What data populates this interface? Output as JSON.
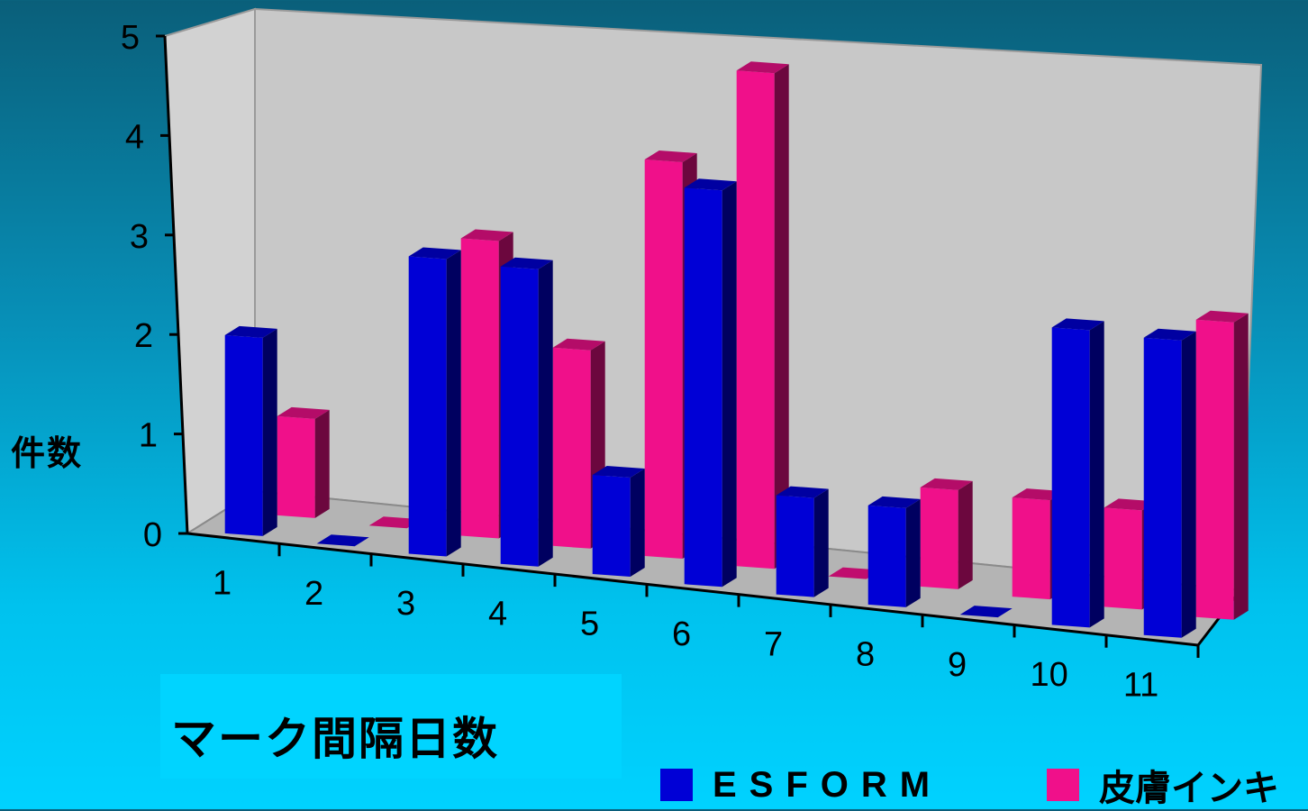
{
  "chart_data": {
    "type": "bar",
    "subtype": "3d-clustered-column",
    "categories": [
      "1",
      "2",
      "3",
      "4",
      "5",
      "6",
      "7",
      "8",
      "9",
      "10",
      "11"
    ],
    "series": [
      {
        "name": "ESFORM",
        "values": [
          2,
          0,
          3,
          3,
          1,
          4,
          1,
          1,
          0,
          3,
          3
        ],
        "color": "#0000d6"
      },
      {
        "name": "皮膚インキ",
        "values": [
          1,
          0,
          3,
          2,
          4,
          5,
          0,
          1,
          1,
          1,
          3
        ],
        "color": "#f0108a"
      }
    ],
    "y_ticks": [
      "0",
      "1",
      "2",
      "3",
      "4",
      "5"
    ],
    "ylabel": "件数",
    "xlabel": "マーク間隔日数",
    "ylim": [
      0,
      5
    ],
    "grid": false,
    "legend_position": "bottom"
  },
  "colors": {
    "wall": "#c8c8c8",
    "floor": "#b4b4b4"
  }
}
